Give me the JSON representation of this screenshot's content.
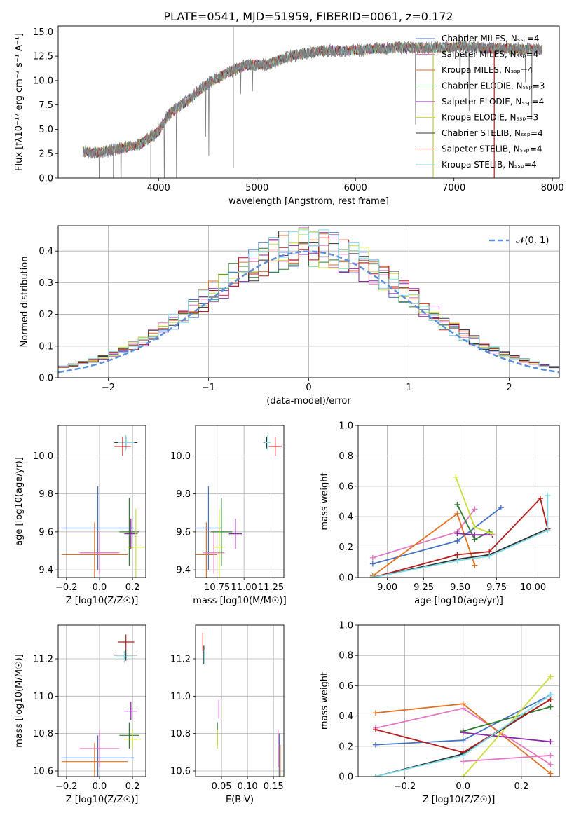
{
  "figure": {
    "title": "PLATE=0541, MJD=51959, FIBERID=0061, z=0.172"
  },
  "chart_data": [
    {
      "id": "spectrum",
      "type": "line",
      "xlabel": "wavelength [Angstrom, rest frame]",
      "ylabel": "Flux [fλ10⁻¹⁷ erg cm⁻² s⁻¹ A⁻¹]",
      "xlim": [
        2980,
        8070
      ],
      "ylim": [
        0,
        15.6
      ],
      "xticks": [
        "4000",
        "5000",
        "6000",
        "7000",
        "8000"
      ],
      "yticks": [
        "0.0",
        "2.5",
        "5.0",
        "7.5",
        "10.0",
        "12.5",
        "15.0"
      ],
      "legend_position": "right",
      "legend": [
        {
          "label": "Chabrier MILES, N_SSP=4",
          "color": "#4472c4"
        },
        {
          "label": "Salpeter MILES, N_SSP=4",
          "color": "#e377c2"
        },
        {
          "label": "Kroupa MILES, N_SSP=4",
          "color": "#e07020"
        },
        {
          "label": "Chabrier ELODIE, N_SSP=3",
          "color": "#2e7d32"
        },
        {
          "label": "Salpeter ELODIE, N_SSP=4",
          "color": "#8e24aa"
        },
        {
          "label": "Kroupa ELODIE, N_SSP=3",
          "color": "#cddc39"
        },
        {
          "label": "Chabrier STELIB, N_SSP=4",
          "color": "#333333"
        },
        {
          "label": "Salpeter STELIB, N_SSP=4",
          "color": "#b71c1c"
        },
        {
          "label": "Kroupa STELIB, N_SSP=4",
          "color": "#80deea"
        }
      ],
      "data_curve": {
        "color": "#808080",
        "x": [
          3230,
          3400,
          3600,
          3800,
          4000,
          4100,
          4300,
          4500,
          4700,
          4900,
          5100,
          5300,
          5500,
          5700,
          5900,
          6100,
          6300,
          6500,
          6700,
          6900,
          7100,
          7300,
          7500,
          7700,
          7900
        ],
        "y": [
          2.7,
          2.6,
          3.0,
          3.4,
          4.8,
          6.5,
          8.0,
          9.7,
          10.8,
          11.6,
          11.6,
          12.4,
          12.8,
          13.1,
          13.0,
          13.2,
          13.3,
          13.4,
          13.3,
          13.4,
          13.5,
          13.3,
          13.3,
          13.2,
          13.2
        ]
      }
    },
    {
      "id": "residuals",
      "type": "step",
      "xlabel": "(data-model)/error",
      "ylabel": "Normed distribution",
      "xlim": [
        -2.5,
        2.5
      ],
      "ylim": [
        0,
        0.48
      ],
      "xticks": [
        "−2",
        "−1",
        "0",
        "1",
        "2"
      ],
      "yticks": [
        "0.0",
        "0.1",
        "0.2",
        "0.3",
        "0.4"
      ],
      "grid": true,
      "legend": [
        {
          "label": "𝒩(0, 1)",
          "color": "#5b8fd9"
        }
      ],
      "bin_width": 0.1,
      "normal_mean": 0,
      "normal_sigma": 1
    },
    {
      "id": "age_Z",
      "type": "scatter",
      "xlabel": "Z [log10(Z/Z☉)]",
      "ylabel": "age  [log10(age/yr)]",
      "xlim": [
        -0.25,
        0.28
      ],
      "ylim": [
        9.36,
        10.16
      ],
      "xticks": [
        "−0.2",
        "0.0",
        "0.2"
      ],
      "yticks": [
        "9.4",
        "9.6",
        "9.8",
        "10.0"
      ],
      "grid": true,
      "points": [
        {
          "x": 0.16,
          "y": 10.07,
          "xerr": 0.07,
          "yerr": 0.03,
          "color": "#333333"
        },
        {
          "x": 0.16,
          "y": 10.07,
          "xerr": 0.05,
          "yerr": 0.04,
          "color": "#80deea"
        },
        {
          "x": 0.14,
          "y": 10.05,
          "xerr": 0.05,
          "yerr": 0.05,
          "color": "#b71c1c"
        },
        {
          "x": -0.01,
          "y": 9.62,
          "xerr": 0.22,
          "yerr": 0.22,
          "color": "#4472c4"
        },
        {
          "x": -0.03,
          "y": 9.48,
          "xerr": 0.2,
          "yerr": 0.17,
          "color": "#e07020"
        },
        {
          "x": 0.0,
          "y": 9.49,
          "xerr": 0.12,
          "yerr": 0.11,
          "color": "#e377c2"
        },
        {
          "x": 0.18,
          "y": 9.6,
          "xerr": 0.06,
          "yerr": 0.18,
          "color": "#2e7d32"
        },
        {
          "x": 0.19,
          "y": 9.59,
          "xerr": 0.04,
          "yerr": 0.08,
          "color": "#8e24aa"
        },
        {
          "x": 0.22,
          "y": 9.52,
          "xerr": 0.05,
          "yerr": 0.2,
          "color": "#cddc39"
        }
      ]
    },
    {
      "id": "age_mass",
      "type": "scatter",
      "xlabel": "mass [log10(M/M☉)]",
      "ylabel": "",
      "xlim": [
        10.55,
        11.37
      ],
      "ylim": [
        9.36,
        10.16
      ],
      "xticks": [
        "10.75",
        "11.00",
        "11.25"
      ],
      "yticks": [
        "9.4",
        "9.6",
        "9.8",
        "10.0"
      ],
      "grid": true,
      "points": [
        {
          "x": 11.21,
          "y": 10.07,
          "xerr": 0.03,
          "yerr": 0.03,
          "color": "#333333"
        },
        {
          "x": 11.22,
          "y": 10.07,
          "xerr": 0.03,
          "yerr": 0.04,
          "color": "#80deea"
        },
        {
          "x": 11.29,
          "y": 10.05,
          "xerr": 0.06,
          "yerr": 0.05,
          "color": "#b71c1c"
        },
        {
          "x": 10.67,
          "y": 9.62,
          "xerr": 0.12,
          "yerr": 0.22,
          "color": "#4472c4"
        },
        {
          "x": 10.65,
          "y": 9.48,
          "xerr": 0.1,
          "yerr": 0.17,
          "color": "#e07020"
        },
        {
          "x": 10.72,
          "y": 9.49,
          "xerr": 0.1,
          "yerr": 0.11,
          "color": "#e377c2"
        },
        {
          "x": 10.79,
          "y": 9.6,
          "xerr": 0.1,
          "yerr": 0.18,
          "color": "#2e7d32"
        },
        {
          "x": 10.92,
          "y": 9.59,
          "xerr": 0.06,
          "yerr": 0.08,
          "color": "#8e24aa"
        },
        {
          "x": 10.77,
          "y": 9.52,
          "xerr": 0.05,
          "yerr": 0.2,
          "color": "#cddc39"
        }
      ]
    },
    {
      "id": "weight_age",
      "type": "line",
      "xlabel": "age  [log10(age/yr)]",
      "ylabel": "mass weight",
      "xlim": [
        8.8,
        10.18
      ],
      "ylim": [
        0,
        1.0
      ],
      "xticks": [
        "9.00",
        "9.25",
        "9.50",
        "9.75",
        "10.00"
      ],
      "yticks": [
        "0.0",
        "0.2",
        "0.4",
        "0.6",
        "0.8",
        "1.0"
      ],
      "grid": true,
      "series": [
        {
          "color": "#4472c4",
          "x": [
            8.9,
            9.48,
            9.78
          ],
          "y": [
            0.09,
            0.24,
            0.46
          ]
        },
        {
          "color": "#e377c2",
          "x": [
            8.9,
            9.48,
            9.6
          ],
          "y": [
            0.13,
            0.3,
            0.45
          ]
        },
        {
          "color": "#e07020",
          "x": [
            8.9,
            9.48,
            9.6
          ],
          "y": [
            0.01,
            0.42,
            0.08
          ]
        },
        {
          "color": "#2e7d32",
          "x": [
            9.48,
            9.6,
            9.7
          ],
          "y": [
            0.48,
            0.25,
            0.3
          ]
        },
        {
          "color": "#8e24aa",
          "x": [
            9.48,
            9.6,
            9.72
          ],
          "y": [
            0.29,
            0.28,
            0.28
          ]
        },
        {
          "color": "#cddc39",
          "x": [
            9.47,
            9.6,
            9.72
          ],
          "y": [
            0.66,
            0.33,
            0.29
          ]
        },
        {
          "color": "#333333",
          "x": [
            8.9,
            9.48,
            9.7,
            10.1
          ],
          "y": [
            0.0,
            0.12,
            0.15,
            0.32
          ]
        },
        {
          "color": "#b71c1c",
          "x": [
            8.9,
            9.48,
            9.7,
            10.05,
            10.1
          ],
          "y": [
            0.0,
            0.15,
            0.17,
            0.52,
            0.32
          ]
        },
        {
          "color": "#80deea",
          "x": [
            8.9,
            9.48,
            9.7,
            10.1,
            10.1
          ],
          "y": [
            0.0,
            0.11,
            0.14,
            0.31,
            0.54
          ]
        }
      ]
    },
    {
      "id": "mass_Z",
      "type": "scatter",
      "xlabel": "Z [log10(Z/Z☉)]",
      "ylabel": "mass [log10(M/M☉)]",
      "xlim": [
        -0.25,
        0.28
      ],
      "ylim": [
        10.57,
        11.38
      ],
      "xticks": [
        "−0.2",
        "0.0",
        "0.2"
      ],
      "yticks": [
        "10.6",
        "10.8",
        "11.0",
        "11.2"
      ],
      "grid": true,
      "points": [
        {
          "x": 0.16,
          "y": 11.29,
          "xerr": 0.05,
          "yerr": 0.04,
          "color": "#b71c1c"
        },
        {
          "x": 0.16,
          "y": 11.22,
          "xerr": 0.07,
          "yerr": 0.03,
          "color": "#333333"
        },
        {
          "x": 0.15,
          "y": 11.21,
          "xerr": 0.05,
          "yerr": 0.03,
          "color": "#80deea"
        },
        {
          "x": -0.01,
          "y": 10.67,
          "xerr": 0.22,
          "yerr": 0.12,
          "color": "#4472c4"
        },
        {
          "x": -0.03,
          "y": 10.65,
          "xerr": 0.2,
          "yerr": 0.1,
          "color": "#e07020"
        },
        {
          "x": 0.0,
          "y": 10.72,
          "xerr": 0.12,
          "yerr": 0.1,
          "color": "#e377c2"
        },
        {
          "x": 0.18,
          "y": 10.79,
          "xerr": 0.06,
          "yerr": 0.07,
          "color": "#2e7d32"
        },
        {
          "x": 0.19,
          "y": 10.92,
          "xerr": 0.04,
          "yerr": 0.05,
          "color": "#8e24aa"
        },
        {
          "x": 0.2,
          "y": 10.77,
          "xerr": 0.05,
          "yerr": 0.05,
          "color": "#cddc39"
        }
      ]
    },
    {
      "id": "mass_ebv",
      "type": "scatter",
      "xlabel": "E(B-V)",
      "ylabel": "",
      "xlim": [
        0.0,
        0.17
      ],
      "ylim": [
        10.57,
        11.38
      ],
      "xticks": [
        "0.05",
        "0.10",
        "0.15"
      ],
      "yticks": [
        "10.6",
        "10.8",
        "11.0",
        "11.2"
      ],
      "grid": true,
      "points": [
        {
          "x": 0.014,
          "y": 11.29,
          "xerr": 0.0,
          "yerr": 0.05,
          "color": "#b71c1c"
        },
        {
          "x": 0.016,
          "y": 11.22,
          "xerr": 0.0,
          "yerr": 0.05,
          "color": "#333333"
        },
        {
          "x": 0.017,
          "y": 11.21,
          "xerr": 0.0,
          "yerr": 0.04,
          "color": "#80deea"
        },
        {
          "x": 0.045,
          "y": 10.93,
          "xerr": 0.0,
          "yerr": 0.05,
          "color": "#8e24aa"
        },
        {
          "x": 0.042,
          "y": 10.8,
          "xerr": 0.0,
          "yerr": 0.06,
          "color": "#2e7d32"
        },
        {
          "x": 0.042,
          "y": 10.77,
          "xerr": 0.0,
          "yerr": 0.05,
          "color": "#cddc39"
        },
        {
          "x": 0.161,
          "y": 10.68,
          "xerr": 0.0,
          "yerr": 0.12,
          "color": "#4472c4"
        },
        {
          "x": 0.159,
          "y": 10.72,
          "xerr": 0.0,
          "yerr": 0.1,
          "color": "#e377c2"
        },
        {
          "x": 0.163,
          "y": 10.65,
          "xerr": 0.0,
          "yerr": 0.09,
          "color": "#e07020"
        }
      ]
    },
    {
      "id": "weight_Z",
      "type": "line",
      "xlabel": "Z [log10(Z/Z☉)]",
      "ylabel": "mass weight",
      "xlim": [
        -0.36,
        0.33
      ],
      "ylim": [
        0,
        1.0
      ],
      "xticks": [
        "−0.2",
        "0.0",
        "0.2"
      ],
      "yticks": [
        "0.0",
        "0.2",
        "0.4",
        "0.6",
        "0.8",
        "1.0"
      ],
      "grid": true,
      "series": [
        {
          "color": "#4472c4",
          "x": [
            -0.3,
            0.0,
            0.3
          ],
          "y": [
            0.21,
            0.24,
            0.54
          ]
        },
        {
          "color": "#e377c2",
          "x": [
            -0.3,
            0.0,
            0.3
          ],
          "y": [
            0.32,
            0.45,
            0.08
          ]
        },
        {
          "color": "#e07020",
          "x": [
            -0.3,
            0.0,
            0.3
          ],
          "y": [
            0.42,
            0.48,
            0.02
          ]
        },
        {
          "color": "#2e7d32",
          "x": [
            0.0,
            0.3
          ],
          "y": [
            0.3,
            0.46
          ]
        },
        {
          "color": "#8e24aa",
          "x": [
            0.0,
            0.3
          ],
          "y": [
            0.29,
            0.23
          ]
        },
        {
          "color": "#cddc39",
          "x": [
            0.0,
            0.3
          ],
          "y": [
            0.0,
            0.66
          ]
        },
        {
          "color": "#333333",
          "x": [
            -0.3,
            0.0,
            0.3
          ],
          "y": [
            0.0,
            0.15,
            0.51
          ]
        },
        {
          "color": "#b71c1c",
          "x": [
            -0.3,
            0.0,
            0.3
          ],
          "y": [
            0.31,
            0.16,
            0.51
          ]
        },
        {
          "color": "#80deea",
          "x": [
            -0.3,
            0.0,
            0.3
          ],
          "y": [
            0.0,
            0.14,
            0.54
          ]
        },
        {
          "color": "#e377c2",
          "x": [
            0.0,
            0.3
          ],
          "y": [
            0.1,
            0.14
          ]
        }
      ]
    }
  ]
}
